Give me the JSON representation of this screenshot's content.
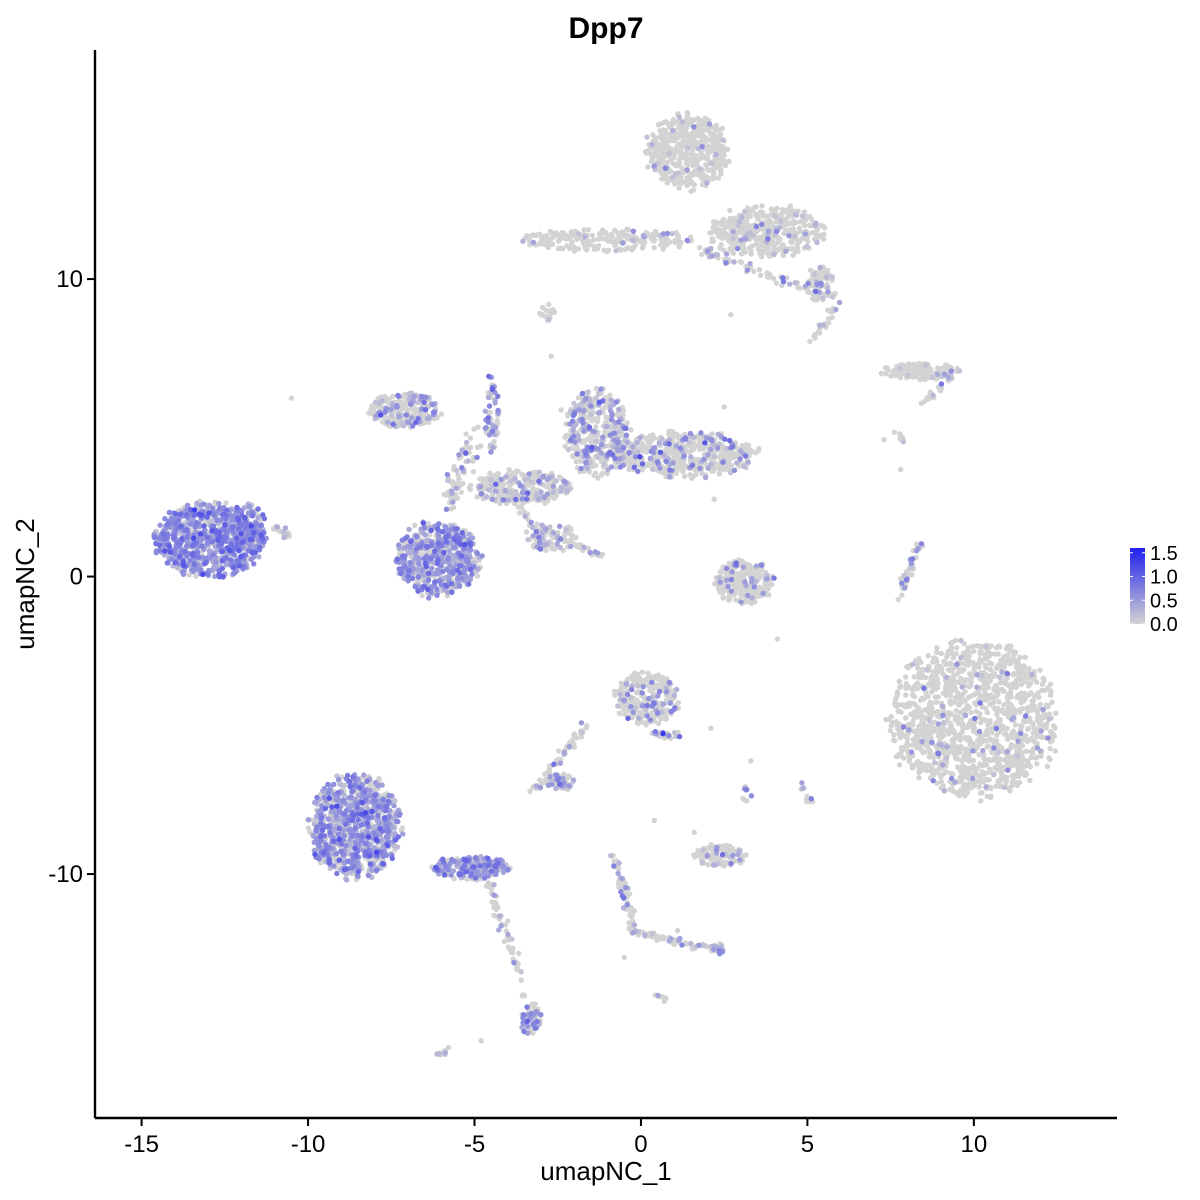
{
  "chart_data": {
    "type": "scatter",
    "title": "Dpp7",
    "xlabel": "umapNC_1",
    "ylabel": "umapNC_2",
    "xlim": [
      -16.4,
      14.3
    ],
    "ylim": [
      -18.2,
      17.7
    ],
    "x_ticks": [
      -15,
      -10,
      -5,
      0,
      5,
      10
    ],
    "x_tick_labels": [
      "-15",
      "-10",
      "-5",
      "0",
      "5",
      "10"
    ],
    "y_ticks": [
      -10,
      0,
      10
    ],
    "y_tick_labels": [
      "-10",
      "0",
      "10"
    ],
    "grid": false,
    "legend": {
      "placement": "right",
      "ticks": [
        0.0,
        0.5,
        1.0,
        1.5
      ],
      "tick_labels": [
        "0.0",
        "0.5",
        "1.0",
        "1.5"
      ],
      "range": [
        0,
        1.6
      ],
      "low_color": "#d3d3d3",
      "high_color": "#2020ee"
    },
    "clusters": [
      {
        "cx": -13.0,
        "cy": 1.2,
        "rx": 1.7,
        "ry": 1.3,
        "n": 700,
        "expr": 0.55,
        "frac": 0.85
      },
      {
        "cx": -11.8,
        "cy": 1.6,
        "rx": 0.6,
        "ry": 0.9,
        "n": 150,
        "expr": 0.5,
        "frac": 0.8
      },
      {
        "cx": -6.1,
        "cy": 0.6,
        "rx": 1.3,
        "ry": 1.3,
        "n": 600,
        "expr": 0.5,
        "frac": 0.6
      },
      {
        "cx": -7.1,
        "cy": 5.6,
        "rx": 1.1,
        "ry": 0.6,
        "n": 250,
        "expr": 0.4,
        "frac": 0.3
      },
      {
        "cx": -1.3,
        "cy": 4.8,
        "rx": 1.0,
        "ry": 1.5,
        "n": 400,
        "expr": 0.4,
        "frac": 0.3
      },
      {
        "cx": 1.3,
        "cy": 4.1,
        "rx": 2.2,
        "ry": 0.8,
        "n": 500,
        "expr": 0.4,
        "frac": 0.22
      },
      {
        "cx": -3.6,
        "cy": 3.0,
        "rx": 1.6,
        "ry": 0.6,
        "n": 250,
        "expr": 0.35,
        "frac": 0.3
      },
      {
        "cx": -4.5,
        "cy": 5.5,
        "rx": 0.25,
        "ry": 1.4,
        "n": 60,
        "expr": 0.4,
        "frac": 0.4
      },
      {
        "cx": -2.7,
        "cy": 1.3,
        "rx": 0.8,
        "ry": 0.5,
        "n": 60,
        "expr": 0.4,
        "frac": 0.3
      },
      {
        "cx": 1.4,
        "cy": 14.3,
        "rx": 1.3,
        "ry": 1.3,
        "n": 450,
        "expr": 0.3,
        "frac": 0.08
      },
      {
        "cx": 3.8,
        "cy": 11.6,
        "rx": 1.8,
        "ry": 0.9,
        "n": 400,
        "expr": 0.3,
        "frac": 0.1
      },
      {
        "cx": -1.0,
        "cy": 11.3,
        "rx": 2.6,
        "ry": 0.4,
        "n": 220,
        "expr": 0.3,
        "frac": 0.08
      },
      {
        "cx": 5.4,
        "cy": 9.8,
        "rx": 0.5,
        "ry": 0.6,
        "n": 90,
        "expr": 0.35,
        "frac": 0.15
      },
      {
        "cx": -2.8,
        "cy": 8.9,
        "rx": 0.25,
        "ry": 0.3,
        "n": 15,
        "expr": 0.3,
        "frac": 0.05
      },
      {
        "cx": 8.4,
        "cy": 6.9,
        "rx": 1.2,
        "ry": 0.28,
        "n": 140,
        "expr": 0.3,
        "frac": 0.05
      },
      {
        "cx": 10.0,
        "cy": -4.8,
        "rx": 2.6,
        "ry": 2.7,
        "n": 1300,
        "expr": 0.35,
        "frac": 0.045
      },
      {
        "cx": 3.1,
        "cy": -0.2,
        "rx": 0.9,
        "ry": 0.8,
        "n": 230,
        "expr": 0.35,
        "frac": 0.12
      },
      {
        "cx": 0.2,
        "cy": -4.1,
        "rx": 1.0,
        "ry": 0.9,
        "n": 270,
        "expr": 0.4,
        "frac": 0.15
      },
      {
        "cx": -2.4,
        "cy": -6.9,
        "rx": 0.5,
        "ry": 0.3,
        "n": 60,
        "expr": 0.45,
        "frac": 0.5
      },
      {
        "cx": 2.4,
        "cy": -9.4,
        "rx": 0.8,
        "ry": 0.4,
        "n": 110,
        "expr": 0.35,
        "frac": 0.15
      },
      {
        "cx": -8.6,
        "cy": -8.4,
        "rx": 1.4,
        "ry": 1.8,
        "n": 900,
        "expr": 0.5,
        "frac": 0.62
      },
      {
        "cx": -5.1,
        "cy": -9.8,
        "rx": 1.2,
        "ry": 0.4,
        "n": 200,
        "expr": 0.55,
        "frac": 0.62
      },
      {
        "cx": -3.3,
        "cy": -14.9,
        "rx": 0.3,
        "ry": 0.6,
        "n": 60,
        "expr": 0.45,
        "frac": 0.55
      },
      {
        "cx": 2.3,
        "cy": -12.5,
        "rx": 0.25,
        "ry": 0.2,
        "n": 20,
        "expr": 0.45,
        "frac": 0.4
      }
    ],
    "paths": [
      {
        "from": [
          -11.0,
          1.7
        ],
        "to": [
          -10.6,
          1.4
        ],
        "n": 20,
        "w": 0.15
      },
      {
        "from": [
          -5.8,
          2.4
        ],
        "to": [
          -4.9,
          5.0
        ],
        "n": 70,
        "w": 0.3
      },
      {
        "from": [
          -4.3,
          3.2
        ],
        "to": [
          -2.6,
          0.8
        ],
        "n": 55,
        "w": 0.15
      },
      {
        "from": [
          -3.1,
          1.6
        ],
        "to": [
          -1.1,
          0.7
        ],
        "n": 40,
        "w": 0.12
      },
      {
        "from": [
          1.8,
          11.0
        ],
        "to": [
          4.8,
          9.7
        ],
        "n": 60,
        "w": 0.15
      },
      {
        "from": [
          5.9,
          9.2
        ],
        "to": [
          5.1,
          7.9
        ],
        "n": 25,
        "w": 0.12
      },
      {
        "from": [
          9.5,
          6.9
        ],
        "to": [
          8.4,
          5.8
        ],
        "n": 25,
        "w": 0.12
      },
      {
        "from": [
          7.7,
          4.9
        ],
        "to": [
          7.9,
          4.5
        ],
        "n": 10,
        "w": 0.1
      },
      {
        "from": [
          8.4,
          1.2
        ],
        "to": [
          7.7,
          -0.8
        ],
        "n": 50,
        "w": 0.12
      },
      {
        "from": [
          -3.3,
          -7.3
        ],
        "to": [
          -1.6,
          -4.9
        ],
        "n": 55,
        "w": 0.14
      },
      {
        "from": [
          0.3,
          -5.3
        ],
        "to": [
          1.2,
          -5.4
        ],
        "n": 25,
        "w": 0.15
      },
      {
        "from": [
          -0.8,
          -9.4
        ],
        "to": [
          -0.2,
          -11.8
        ],
        "n": 60,
        "w": 0.14
      },
      {
        "from": [
          -0.3,
          -11.9
        ],
        "to": [
          2.4,
          -12.6
        ],
        "n": 70,
        "w": 0.14
      },
      {
        "from": [
          -4.6,
          -10.2
        ],
        "to": [
          -3.4,
          -14.3
        ],
        "n": 55,
        "w": 0.14
      },
      {
        "from": [
          -6.1,
          -16.1
        ],
        "to": [
          -5.8,
          -15.9
        ],
        "n": 10,
        "w": 0.1
      },
      {
        "from": [
          4.8,
          -7.0
        ],
        "to": [
          5.1,
          -7.6
        ],
        "n": 12,
        "w": 0.1
      },
      {
        "from": [
          3.2,
          -7.1
        ],
        "to": [
          3.1,
          -7.5
        ],
        "n": 8,
        "w": 0.1
      },
      {
        "from": [
          0.5,
          -14.1
        ],
        "to": [
          0.7,
          -14.2
        ],
        "n": 8,
        "w": 0.08
      }
    ],
    "outliers": [
      [
        -10.5,
        6.0
      ],
      [
        -2.7,
        7.4
      ],
      [
        -2.4,
        5.6
      ],
      [
        2.7,
        8.8
      ],
      [
        2.5,
        5.7
      ],
      [
        7.3,
        4.6
      ],
      [
        7.8,
        3.6
      ],
      [
        -7.0,
        0.4
      ],
      [
        4.1,
        -2.1
      ],
      [
        3.3,
        -6.2
      ],
      [
        2.1,
        -5.1
      ],
      [
        1.6,
        -8.6
      ],
      [
        -4.2,
        -11.4
      ],
      [
        -0.5,
        -12.8
      ],
      [
        -4.8,
        -15.6
      ],
      [
        0.4,
        -8.2
      ],
      [
        2.2,
        2.6
      ],
      [
        1.1,
        -11.9
      ]
    ]
  }
}
